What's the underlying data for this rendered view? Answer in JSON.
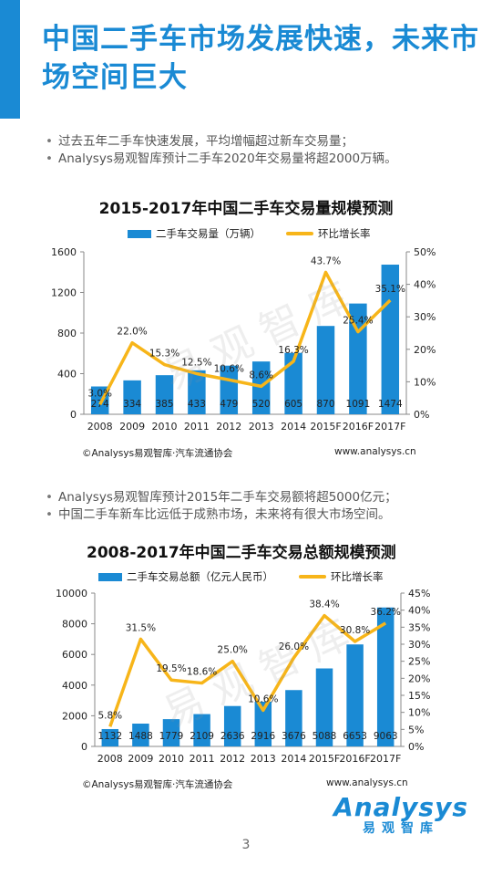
{
  "title": "中国二手车市场发展快速，未来市场空间巨大",
  "bullets_1": [
    "过去五年二手车快速发展，平均增幅超过新车交易量；",
    "Analysys易观智库预计二手车2020年交易量将超2000万辆。"
  ],
  "bullets_2": [
    "Analysys易观智库预计2015年二手车交易额将超5000亿元；",
    "中国二手车新车比远低于成熟市场，未来将有很大市场空间。"
  ],
  "bullet_symbol": "•",
  "watermark": "易观智库",
  "logo": {
    "name": "Analysys",
    "sub": "易观智库"
  },
  "page_number": "3",
  "colors": {
    "accent": "#1a8ad4",
    "bar": "#1a8ad4",
    "line": "#f7b519"
  },
  "chart_data": [
    {
      "type": "bar",
      "title": "2015-2017年中国二手车交易量规模预测",
      "categories": [
        "2008",
        "2009",
        "2010",
        "2011",
        "2012",
        "2013",
        "2014",
        "2015F",
        "2016F",
        "2017F"
      ],
      "series": [
        {
          "name": "二手车交易量（万辆）",
          "values": [
            274,
            334,
            385,
            433,
            479,
            520,
            605,
            870,
            1091,
            1474
          ],
          "labels": [
            "274",
            "334",
            "385",
            "433",
            "479",
            "520",
            "605",
            "870",
            "1091",
            "1474"
          ]
        },
        {
          "name": "环比增长率",
          "type": "line",
          "axis": "right",
          "values": [
            3.0,
            22.0,
            15.3,
            12.5,
            10.6,
            8.6,
            16.3,
            43.7,
            25.4,
            35.1
          ],
          "labels": [
            "3.0%",
            "22.0%",
            "15.3%",
            "12.5%",
            "10.6%",
            "8.6%",
            "16.3%",
            "43.7%",
            "25.4%",
            "35.1%"
          ]
        }
      ],
      "ylim": [
        0,
        1600
      ],
      "yticks": [
        "0",
        "400",
        "800",
        "1200",
        "1600"
      ],
      "y2lim": [
        0,
        50
      ],
      "y2ticks": [
        "0%",
        "10%",
        "20%",
        "30%",
        "40%",
        "50%"
      ],
      "legend_position": "top",
      "grid": false,
      "source": "©Analysys易观智库·汽车流通协会",
      "website": "www.analysys.cn"
    },
    {
      "type": "bar",
      "title": "2008-2017年中国二手车交易总额规模预测",
      "categories": [
        "2008",
        "2009",
        "2010",
        "2011",
        "2012",
        "2013",
        "2014",
        "2015F",
        "2016F",
        "2017F"
      ],
      "series": [
        {
          "name": "二手车交易总额（亿元人民币）",
          "values": [
            1132,
            1488,
            1779,
            2109,
            2636,
            2916,
            3676,
            5088,
            6653,
            9063
          ],
          "labels": [
            "1132",
            "1488",
            "1779",
            "2109",
            "2636",
            "2916",
            "3676",
            "5088",
            "6653",
            "9063"
          ]
        },
        {
          "name": "环比增长率",
          "type": "line",
          "axis": "right",
          "values": [
            5.8,
            31.5,
            19.5,
            18.6,
            25.0,
            10.6,
            26.0,
            38.4,
            30.8,
            36.2
          ],
          "labels": [
            "5.8%",
            "31.5%",
            "19.5%",
            "18.6%",
            "25.0%",
            "10.6%",
            "26.0%",
            "38.4%",
            "30.8%",
            "36.2%"
          ]
        }
      ],
      "ylim": [
        0,
        10000
      ],
      "yticks": [
        "0",
        "2000",
        "4000",
        "6000",
        "8000",
        "10000"
      ],
      "y2lim": [
        0,
        45
      ],
      "y2ticks": [
        "0%",
        "5%",
        "10%",
        "15%",
        "20%",
        "25%",
        "30%",
        "35%",
        "40%",
        "45%"
      ],
      "legend_position": "top",
      "grid": false,
      "source": "©Analysys易观智库·汽车流通协会",
      "website": "www.analysys.cn"
    }
  ]
}
